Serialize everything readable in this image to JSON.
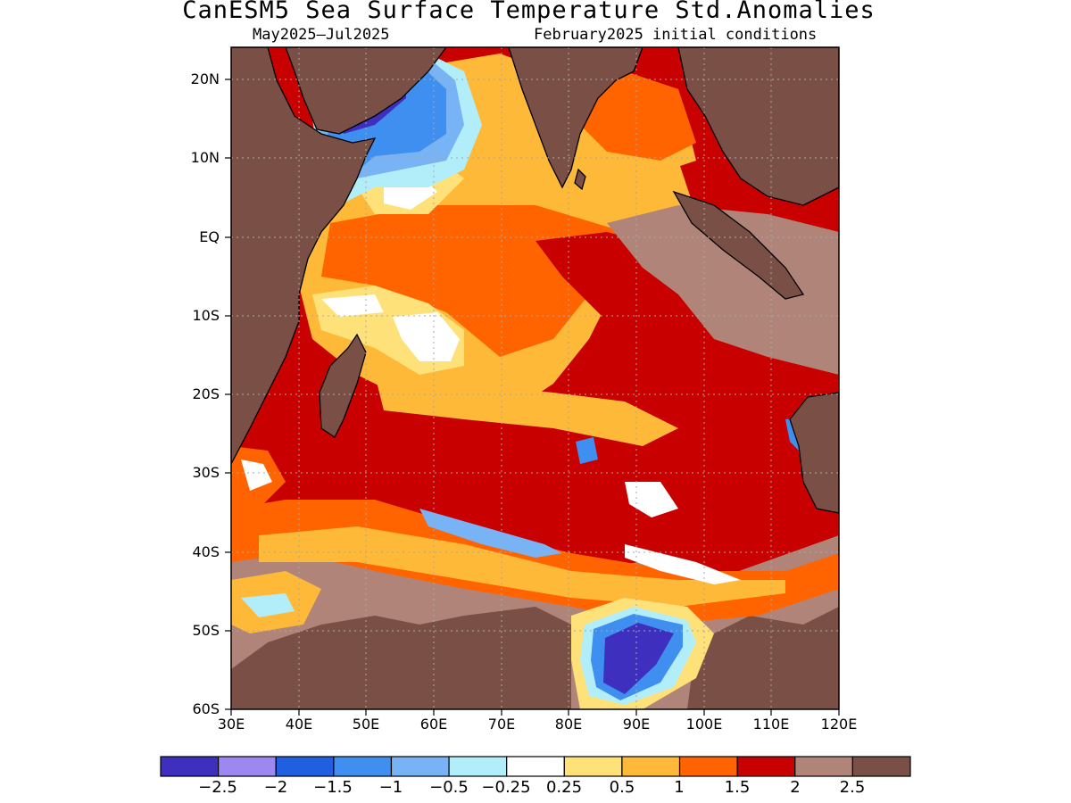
{
  "figure": {
    "title": "CanESM5 Sea Surface Temperature Std.Anomalies",
    "period": "May2025–Jul2025",
    "init": "February2025 initial conditions"
  },
  "map": {
    "lon_range": [
      30,
      120
    ],
    "lat_range": [
      -60,
      24
    ],
    "lat_ticks": [
      {
        "value": 20,
        "label": "20N"
      },
      {
        "value": 10,
        "label": "10N"
      },
      {
        "value": 0,
        "label": "EQ"
      },
      {
        "value": -10,
        "label": "10S"
      },
      {
        "value": -20,
        "label": "20S"
      },
      {
        "value": -30,
        "label": "30S"
      },
      {
        "value": -40,
        "label": "40S"
      },
      {
        "value": -50,
        "label": "50S"
      },
      {
        "value": -60,
        "label": "60S"
      }
    ],
    "lon_ticks": [
      {
        "value": 30,
        "label": "30E"
      },
      {
        "value": 40,
        "label": "40E"
      },
      {
        "value": 50,
        "label": "50E"
      },
      {
        "value": 60,
        "label": "60E"
      },
      {
        "value": 70,
        "label": "70E"
      },
      {
        "value": 80,
        "label": "80E"
      },
      {
        "value": 90,
        "label": "90E"
      },
      {
        "value": 100,
        "label": "100E"
      },
      {
        "value": 110,
        "label": "110E"
      },
      {
        "value": 120,
        "label": "120E"
      }
    ],
    "land_color": "#7a4f45",
    "colors": {
      "lt_m25": "#3e2fbf",
      "m25_m2": "#9c88f0",
      "m2_m15": "#1f5fe0",
      "m15_m1": "#3f8ff0",
      "m1_m05": "#77b3f5",
      "m05_m025": "#b2eefa",
      "neutral": "#ffffff",
      "p025_p05": "#ffe17a",
      "p05_p1": "#ffb938",
      "p1_p15": "#ff6400",
      "p15_p2": "#c80000",
      "p2_p25": "#b08478",
      "gt_p25": "#7a4f45"
    }
  },
  "colorbar": {
    "colors": [
      "#3e2fbf",
      "#9c88f0",
      "#1f5fe0",
      "#3f8ff0",
      "#77b3f5",
      "#b2eefa",
      "#ffffff",
      "#ffe17a",
      "#ffb938",
      "#ff6400",
      "#c80000",
      "#b08478",
      "#7a4f45"
    ],
    "labels": [
      "−2.5",
      "−2",
      "−1.5",
      "−1",
      "−0.5",
      "−0.25",
      "0.25",
      "0.5",
      "1",
      "1.5",
      "2",
      "2.5"
    ]
  }
}
